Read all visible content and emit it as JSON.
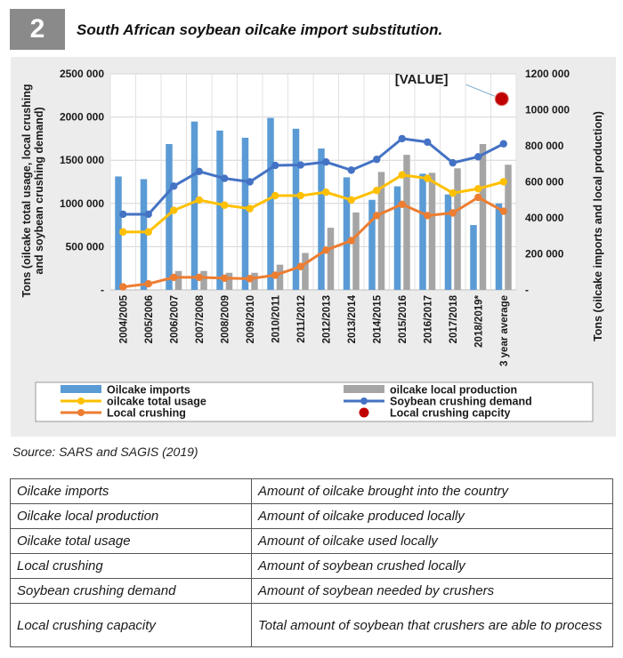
{
  "figure": {
    "number": "2",
    "title": "South African soybean oilcake import substitution.",
    "source": "Source: SARS and SAGIS (2019)"
  },
  "chart_data": {
    "type": "bar",
    "categories": [
      "2004/2005",
      "2005/2006",
      "2006/2007",
      "2007/2008",
      "2008/2009",
      "2009/2010",
      "2010/2011",
      "2011/2012",
      "2012/2013",
      "2013/2014",
      "2014/2015",
      "2015/2016",
      "2016/2017",
      "2017/2018",
      "2018/2019*",
      "3 year average"
    ],
    "y_left": {
      "label": "Tons (oilcake total usage, local crushing and soybean crushing demand)",
      "range": [
        0,
        2500000
      ],
      "ticks": [
        "-",
        "500 000",
        "1000 000",
        "1500 000",
        "2000 000",
        "2500 000"
      ]
    },
    "y_right": {
      "label": "Tons (oilcake imports and local production)",
      "range": [
        0,
        1200000
      ],
      "ticks": [
        "-",
        "200 000",
        "400 000",
        "600 000",
        "800 000",
        "1000 000",
        "1200 000"
      ]
    },
    "colors": {
      "imports": "#5b9bd5",
      "production": "#a5a5a5",
      "usage": "#ffc000",
      "demand": "#4472c4",
      "crushing": "#ed7d31",
      "capacity": "#c00000"
    },
    "series": [
      {
        "name": "Oilcake imports",
        "axis": "right",
        "kind": "bar",
        "values": [
          630000,
          615000,
          810000,
          935000,
          885000,
          845000,
          955000,
          895000,
          785000,
          625000,
          500000,
          575000,
          645000,
          530000,
          360000,
          480000
        ]
      },
      {
        "name": "oilcake local production",
        "axis": "right",
        "kind": "bar",
        "values": [
          0,
          0,
          105000,
          105000,
          95000,
          95000,
          140000,
          205000,
          345000,
          430000,
          655000,
          750000,
          650000,
          675000,
          810000,
          695000
        ]
      },
      {
        "name": "oilcake total usage",
        "axis": "left",
        "kind": "line",
        "values": [
          670000,
          670000,
          920000,
          1040000,
          980000,
          940000,
          1090000,
          1090000,
          1130000,
          1040000,
          1150000,
          1330000,
          1290000,
          1120000,
          1170000,
          1250000
        ]
      },
      {
        "name": "Soybean crushing demand",
        "axis": "left",
        "kind": "line",
        "values": [
          875000,
          875000,
          1200000,
          1370000,
          1290000,
          1250000,
          1440000,
          1445000,
          1480000,
          1385000,
          1510000,
          1750000,
          1710000,
          1470000,
          1540000,
          1690000
        ]
      },
      {
        "name": "Local crushing",
        "axis": "left",
        "kind": "line",
        "values": [
          35000,
          70000,
          145000,
          145000,
          135000,
          130000,
          170000,
          270000,
          460000,
          570000,
          860000,
          990000,
          860000,
          890000,
          1070000,
          910000
        ]
      },
      {
        "name": "Local crushing capcity",
        "axis": "left",
        "kind": "point",
        "values": [
          null,
          null,
          null,
          null,
          null,
          null,
          null,
          null,
          null,
          null,
          null,
          null,
          null,
          null,
          null,
          2210000
        ]
      }
    ],
    "annotation": "[VALUE]",
    "legend_position": "bottom",
    "grid": true
  },
  "definitions": [
    {
      "term": "Oilcake imports",
      "definition": "Amount of oilcake brought into the country"
    },
    {
      "term": "Oilcake local production",
      "definition": "Amount of oilcake produced locally"
    },
    {
      "term": "Oilcake total usage",
      "definition": "Amount of oilcake used locally"
    },
    {
      "term": "Local crushing",
      "definition": "Amount of soybean crushed locally"
    },
    {
      "term": "Soybean crushing demand",
      "definition": "Amount of soybean needed by crushers"
    },
    {
      "term": "Local crushing capacity",
      "definition": "Total amount of soybean that crushers are able to process"
    }
  ]
}
